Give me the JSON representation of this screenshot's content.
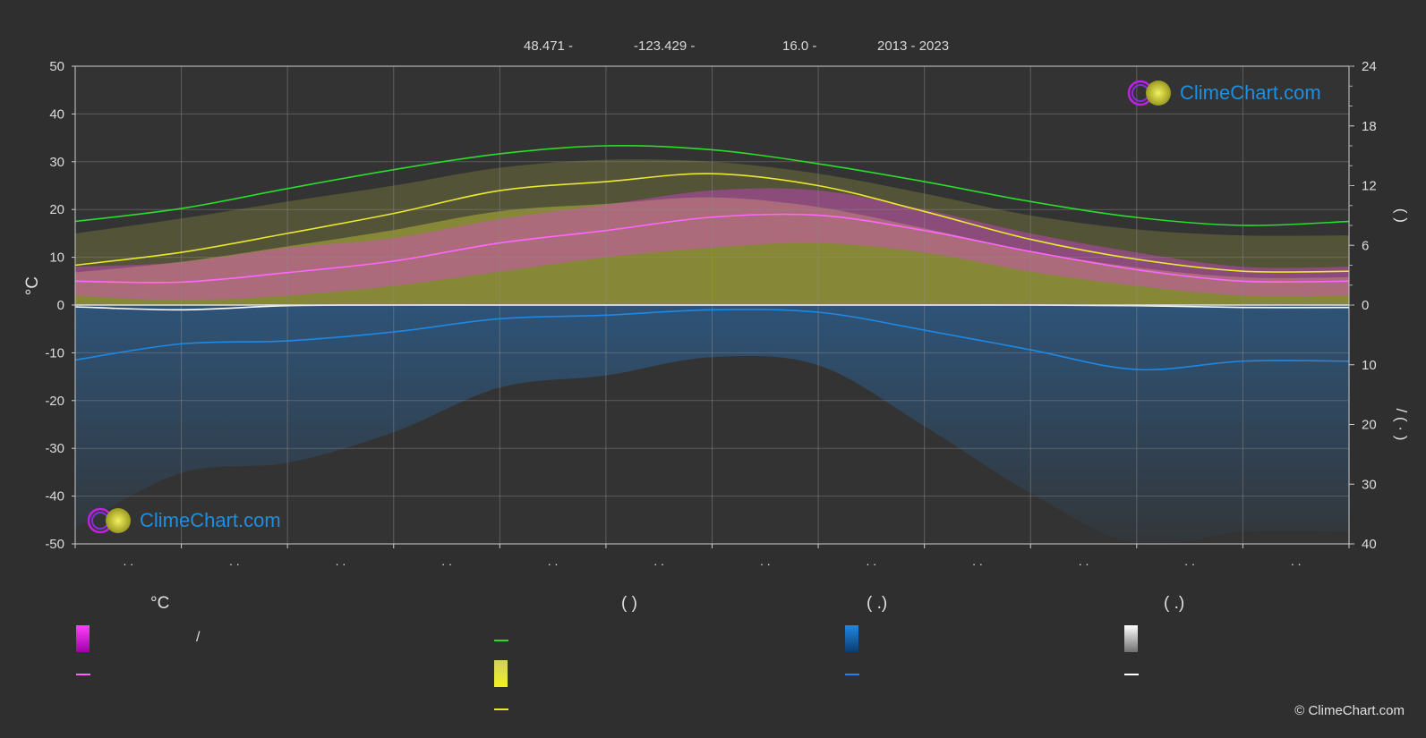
{
  "header": {
    "latitude": "48.471 -",
    "longitude": "-123.429 -",
    "elevation": "16.0 -",
    "period": "2013 - 2023"
  },
  "logo": {
    "text": "ClimeChart.com"
  },
  "copyright": "© ClimeChart.com",
  "legend": {
    "col1_title": "°C",
    "col2_title": "(           )",
    "col3_title": "(   .)",
    "col4_title": "(   .)",
    "slash": "/"
  },
  "colors": {
    "background": "#2f2f2f",
    "daylight": "#2bdc2b",
    "sunshine": "#e8e830",
    "temp_mean": "#ff66ff",
    "precip": "#1e88e5",
    "snow": "#ffffff",
    "temp_band": "#e040e0",
    "sun_band": "#c8c83a"
  },
  "chart_data": {
    "type": "line",
    "title": "",
    "xlabel": "",
    "x_tick_labels": [
      ". .",
      ". .",
      ". .",
      ". .",
      ". .",
      ". .",
      ". .",
      ". .",
      ". .",
      ". .",
      ". .",
      ". ."
    ],
    "ylabel_left": "°C",
    "ylim_left": [
      -50,
      50
    ],
    "yticks_left": [
      50,
      40,
      30,
      20,
      10,
      0,
      -10,
      -20,
      -30,
      -40,
      -50
    ],
    "ylabel_right_top": "(   )",
    "ylim_right_top": [
      0,
      24
    ],
    "yticks_right_top": [
      24,
      18,
      12,
      6,
      0
    ],
    "ylabel_right_bottom": "/ (  ·  )",
    "ylim_right_bottom": [
      0,
      40
    ],
    "yticks_right_bottom": [
      10,
      20,
      30,
      40
    ],
    "grid": true,
    "months": 12,
    "series": [
      {
        "key": "daylight",
        "axis": "right_top",
        "values": [
          8.4,
          9.7,
          11.7,
          13.6,
          15.2,
          16.0,
          15.6,
          14.2,
          12.4,
          10.4,
          8.8,
          8.0,
          8.4
        ]
      },
      {
        "key": "sunshine",
        "axis": "right_top",
        "values": [
          4.0,
          5.3,
          7.2,
          9.2,
          11.5,
          12.4,
          13.2,
          12.0,
          9.4,
          6.6,
          4.6,
          3.4,
          3.4
        ]
      },
      {
        "key": "temp_mean",
        "axis": "left",
        "values": [
          5.0,
          4.8,
          6.8,
          9.2,
          13.0,
          15.6,
          18.4,
          18.8,
          15.6,
          11.2,
          7.4,
          5.0,
          5.0
        ]
      },
      {
        "key": "precip",
        "axis": "right_bottom",
        "values": [
          9.2,
          6.5,
          6.0,
          4.5,
          2.3,
          1.7,
          0.8,
          1.2,
          4.2,
          7.5,
          10.8,
          9.4,
          9.4
        ]
      },
      {
        "key": "snow",
        "axis": "right_bottom",
        "values": [
          0.3,
          0.8,
          0.1,
          0.0,
          0.0,
          0.0,
          0.0,
          0.0,
          0.0,
          0.0,
          0.1,
          0.4,
          0.4
        ]
      }
    ],
    "bands": {
      "sun_fill_top_hours": [
        7.2,
        8.7,
        10.4,
        12.0,
        13.8,
        14.6,
        14.4,
        13.2,
        11.2,
        9.0,
        7.6,
        7.0,
        7.0
      ],
      "temp_band_max_c": [
        8,
        9,
        12,
        14,
        18,
        21,
        24,
        24,
        20,
        15,
        11,
        8,
        8
      ],
      "temp_band_min_c": [
        2,
        1,
        2,
        4,
        7,
        10,
        12,
        13,
        11,
        7,
        4,
        2,
        2
      ]
    }
  }
}
